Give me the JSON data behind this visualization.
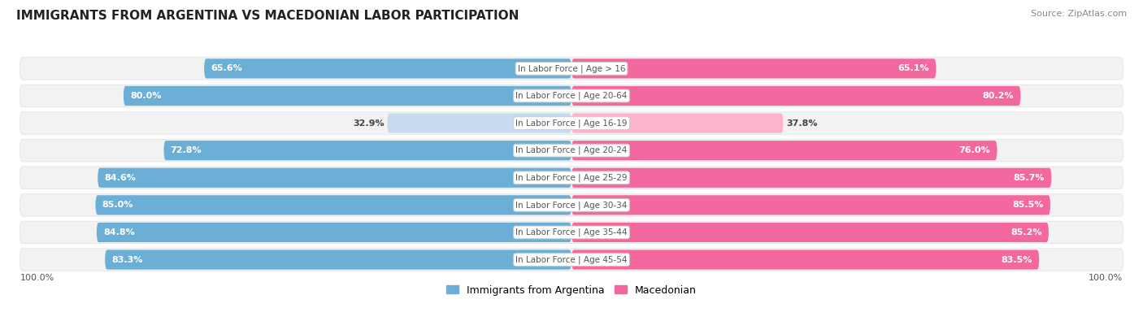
{
  "title": "IMMIGRANTS FROM ARGENTINA VS MACEDONIAN LABOR PARTICIPATION",
  "source": "Source: ZipAtlas.com",
  "categories": [
    "In Labor Force | Age > 16",
    "In Labor Force | Age 20-64",
    "In Labor Force | Age 16-19",
    "In Labor Force | Age 20-24",
    "In Labor Force | Age 25-29",
    "In Labor Force | Age 30-34",
    "In Labor Force | Age 35-44",
    "In Labor Force | Age 45-54"
  ],
  "argentina_values": [
    65.6,
    80.0,
    32.9,
    72.8,
    84.6,
    85.0,
    84.8,
    83.3
  ],
  "macedonian_values": [
    65.1,
    80.2,
    37.8,
    76.0,
    85.7,
    85.5,
    85.2,
    83.5
  ],
  "argentina_color_full": "#6baed6",
  "argentina_color_light": "#c6dbef",
  "macedonian_color_full": "#f468a0",
  "macedonian_color_light": "#fbb4cb",
  "row_bg_color": "#f2f2f2",
  "row_border_color": "#e0e0e0",
  "label_color_white": "#ffffff",
  "label_color_dark": "#444444",
  "center_label_color": "#555555",
  "axis_label": "100.0%",
  "legend_argentina": "Immigrants from Argentina",
  "legend_macedonian": "Macedonian",
  "light_threshold": 50.0,
  "fig_bg": "#ffffff",
  "title_color": "#222222",
  "source_color": "#888888"
}
